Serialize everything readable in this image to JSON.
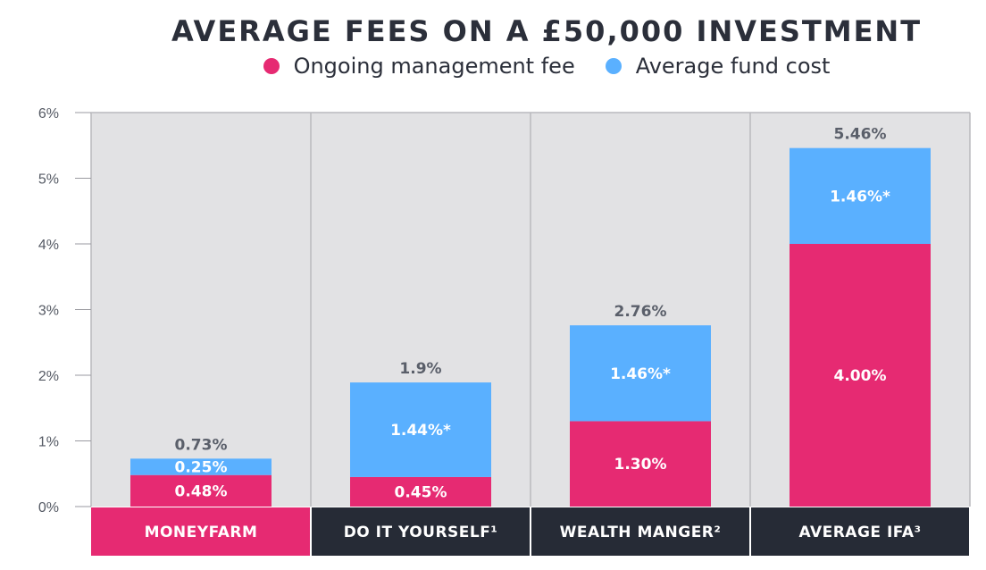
{
  "chart_data": {
    "type": "bar",
    "stacked": true,
    "title": "AVERAGE FEES ON A £50,000 INVESTMENT",
    "categories": [
      "MONEYFARM",
      "DO IT YOURSELF¹",
      "WEALTH MANGER²",
      "AVERAGE IFA³"
    ],
    "series": [
      {
        "name": "Ongoing management fee",
        "color": "#e62a72",
        "values": [
          0.48,
          0.45,
          1.3,
          4.0
        ],
        "labels": [
          "0.48%",
          "0.45%",
          "1.30%",
          "4.00%"
        ]
      },
      {
        "name": "Average fund cost",
        "color": "#5ab0ff",
        "values": [
          0.25,
          1.44,
          1.46,
          1.46
        ],
        "labels": [
          "0.25%",
          "1.44%*",
          "1.46%*",
          "1.46%*"
        ]
      }
    ],
    "totals": [
      0.73,
      1.9,
      2.76,
      5.46
    ],
    "total_labels": [
      "0.73%",
      "1.9%",
      "2.76%",
      "5.46%"
    ],
    "ylim": [
      0,
      6
    ],
    "yticks": [
      0,
      1,
      2,
      3,
      4,
      5,
      6
    ],
    "ytick_labels": [
      "0%",
      "1%",
      "2%",
      "3%",
      "4%",
      "5%",
      "6%"
    ],
    "grid": false,
    "legend_position": "top-center",
    "category_band_colors": [
      "#e62a72",
      "#262b36",
      "#262b36",
      "#262b36"
    ],
    "panel_background": "#e2e2e4"
  }
}
